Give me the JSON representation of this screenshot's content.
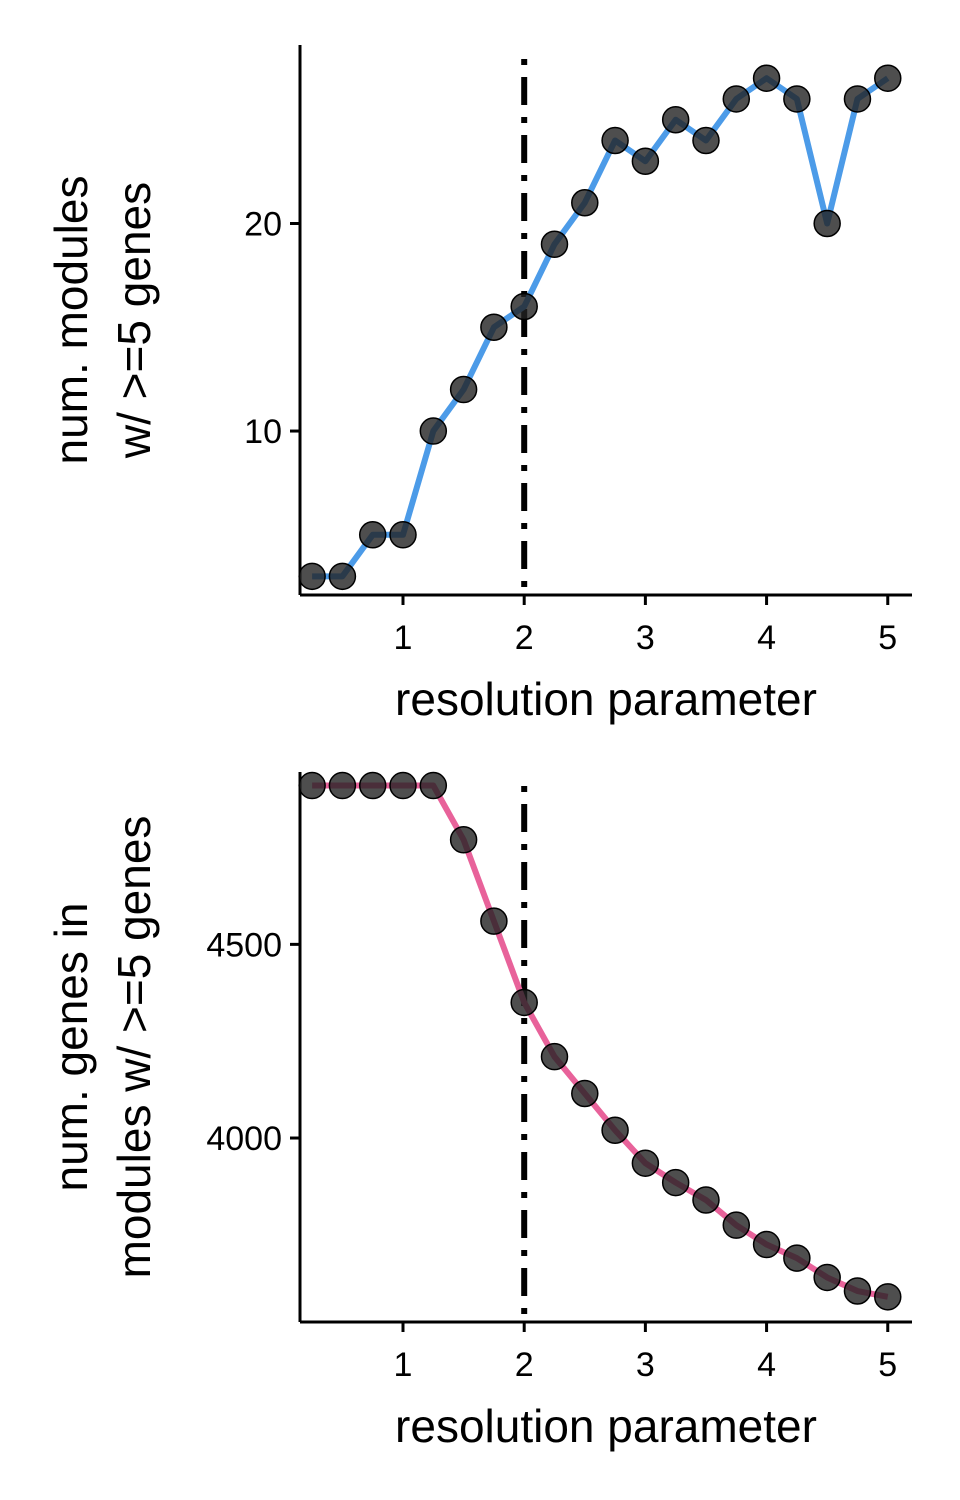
{
  "chart_data": [
    {
      "type": "line",
      "ylabel": [
        "num. modules",
        "w/ >=5 genes"
      ],
      "xlabel": "resolution parameter",
      "x": [
        0.25,
        0.5,
        0.75,
        1.0,
        1.25,
        1.5,
        1.75,
        2.0,
        2.25,
        2.5,
        2.75,
        3.0,
        3.25,
        3.5,
        3.75,
        4.0,
        4.25,
        4.5,
        4.75,
        5.0
      ],
      "series": [
        {
          "values": [
            3,
            3,
            5,
            5,
            10,
            12,
            15,
            16,
            19,
            21,
            24,
            23,
            25,
            24,
            26,
            27,
            26,
            20,
            26,
            27
          ],
          "color": "#4c9be8"
        }
      ],
      "xlim": [
        0.15,
        5.2
      ],
      "ylim": [
        2.1,
        28.6
      ],
      "xticks": [
        1,
        2,
        3,
        4,
        5
      ],
      "yticks": [
        10,
        20
      ],
      "vline": {
        "x": 2,
        "style": "dot-dash",
        "color": "#000000"
      },
      "point_color": "#222222",
      "grid": false
    },
    {
      "type": "line",
      "ylabel": [
        "num. genes in",
        "modules w/ >=5 genes"
      ],
      "xlabel": "resolution parameter",
      "x": [
        0.25,
        0.5,
        0.75,
        1.0,
        1.25,
        1.5,
        1.75,
        2.0,
        2.25,
        2.5,
        2.75,
        3.0,
        3.25,
        3.5,
        3.75,
        4.0,
        4.25,
        4.5,
        4.75,
        5.0
      ],
      "series": [
        {
          "values": [
            4910,
            4910,
            4910,
            4910,
            4910,
            4770,
            4560,
            4350,
            4210,
            4115,
            4020,
            3935,
            3885,
            3840,
            3775,
            3725,
            3690,
            3640,
            3605,
            3590
          ],
          "color": "#e8629a"
        }
      ],
      "xlim": [
        0.15,
        5.2
      ],
      "ylim": [
        3525,
        4945
      ],
      "xticks": [
        1,
        2,
        3,
        4,
        5
      ],
      "yticks": [
        4000,
        4500
      ],
      "vline": {
        "x": 2,
        "style": "dot-dash",
        "color": "#000000"
      },
      "point_color": "#222222",
      "grid": false
    }
  ]
}
